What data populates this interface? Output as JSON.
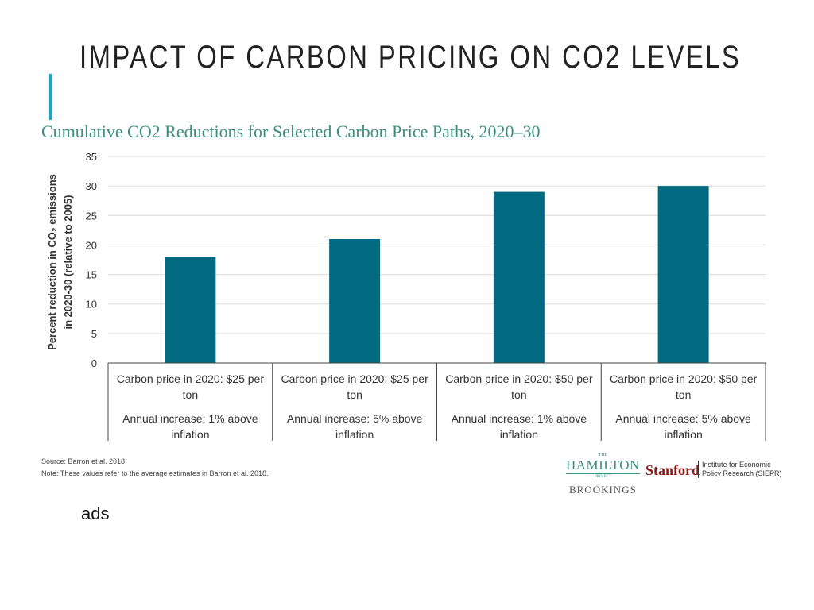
{
  "slide": {
    "title": "IMPACT OF CARBON PRICING ON CO2 LEVELS",
    "body_text": "ads",
    "accent_color": "#1ba3c6"
  },
  "chart_data": {
    "type": "bar",
    "title": "Cumulative CO2 Reductions for Selected Carbon Price Paths, 2020–30",
    "ylabel_line1": "Percent reduction in CO₂ emissions",
    "ylabel_line2": "in 2020-30 (relative to 2005)",
    "ylim": [
      0,
      35
    ],
    "yticks": [
      0,
      5,
      10,
      15,
      20,
      25,
      30,
      35
    ],
    "grid": true,
    "bar_color": "#006a80",
    "categories": [
      {
        "line1": "Carbon price in 2020: $25 per",
        "line2": "ton",
        "line3": "Annual increase: 1% above",
        "line4": "inflation"
      },
      {
        "line1": "Carbon price in 2020: $25 per",
        "line2": "ton",
        "line3": "Annual increase: 5% above",
        "line4": "inflation"
      },
      {
        "line1": "Carbon price in 2020: $50 per",
        "line2": "ton",
        "line3": "Annual increase: 1% above",
        "line4": "inflation"
      },
      {
        "line1": "Carbon price in 2020: $50 per",
        "line2": "ton",
        "line3": "Annual increase: 5% above",
        "line4": "inflation"
      }
    ],
    "values": [
      18,
      21,
      29,
      30
    ],
    "source": "Source: Barron et al. 2018.",
    "note": "Note: These values refer to the average estimates in Barron et al. 2018."
  },
  "logos": {
    "hamilton_small": "THE",
    "hamilton": "HAMILTON",
    "hamilton_project": "PROJECT",
    "brookings": "BROOKINGS",
    "stanford": "Stanford",
    "siepr_line1": "Institute for Economic",
    "siepr_line2": "Policy Research (SIEPR)"
  }
}
